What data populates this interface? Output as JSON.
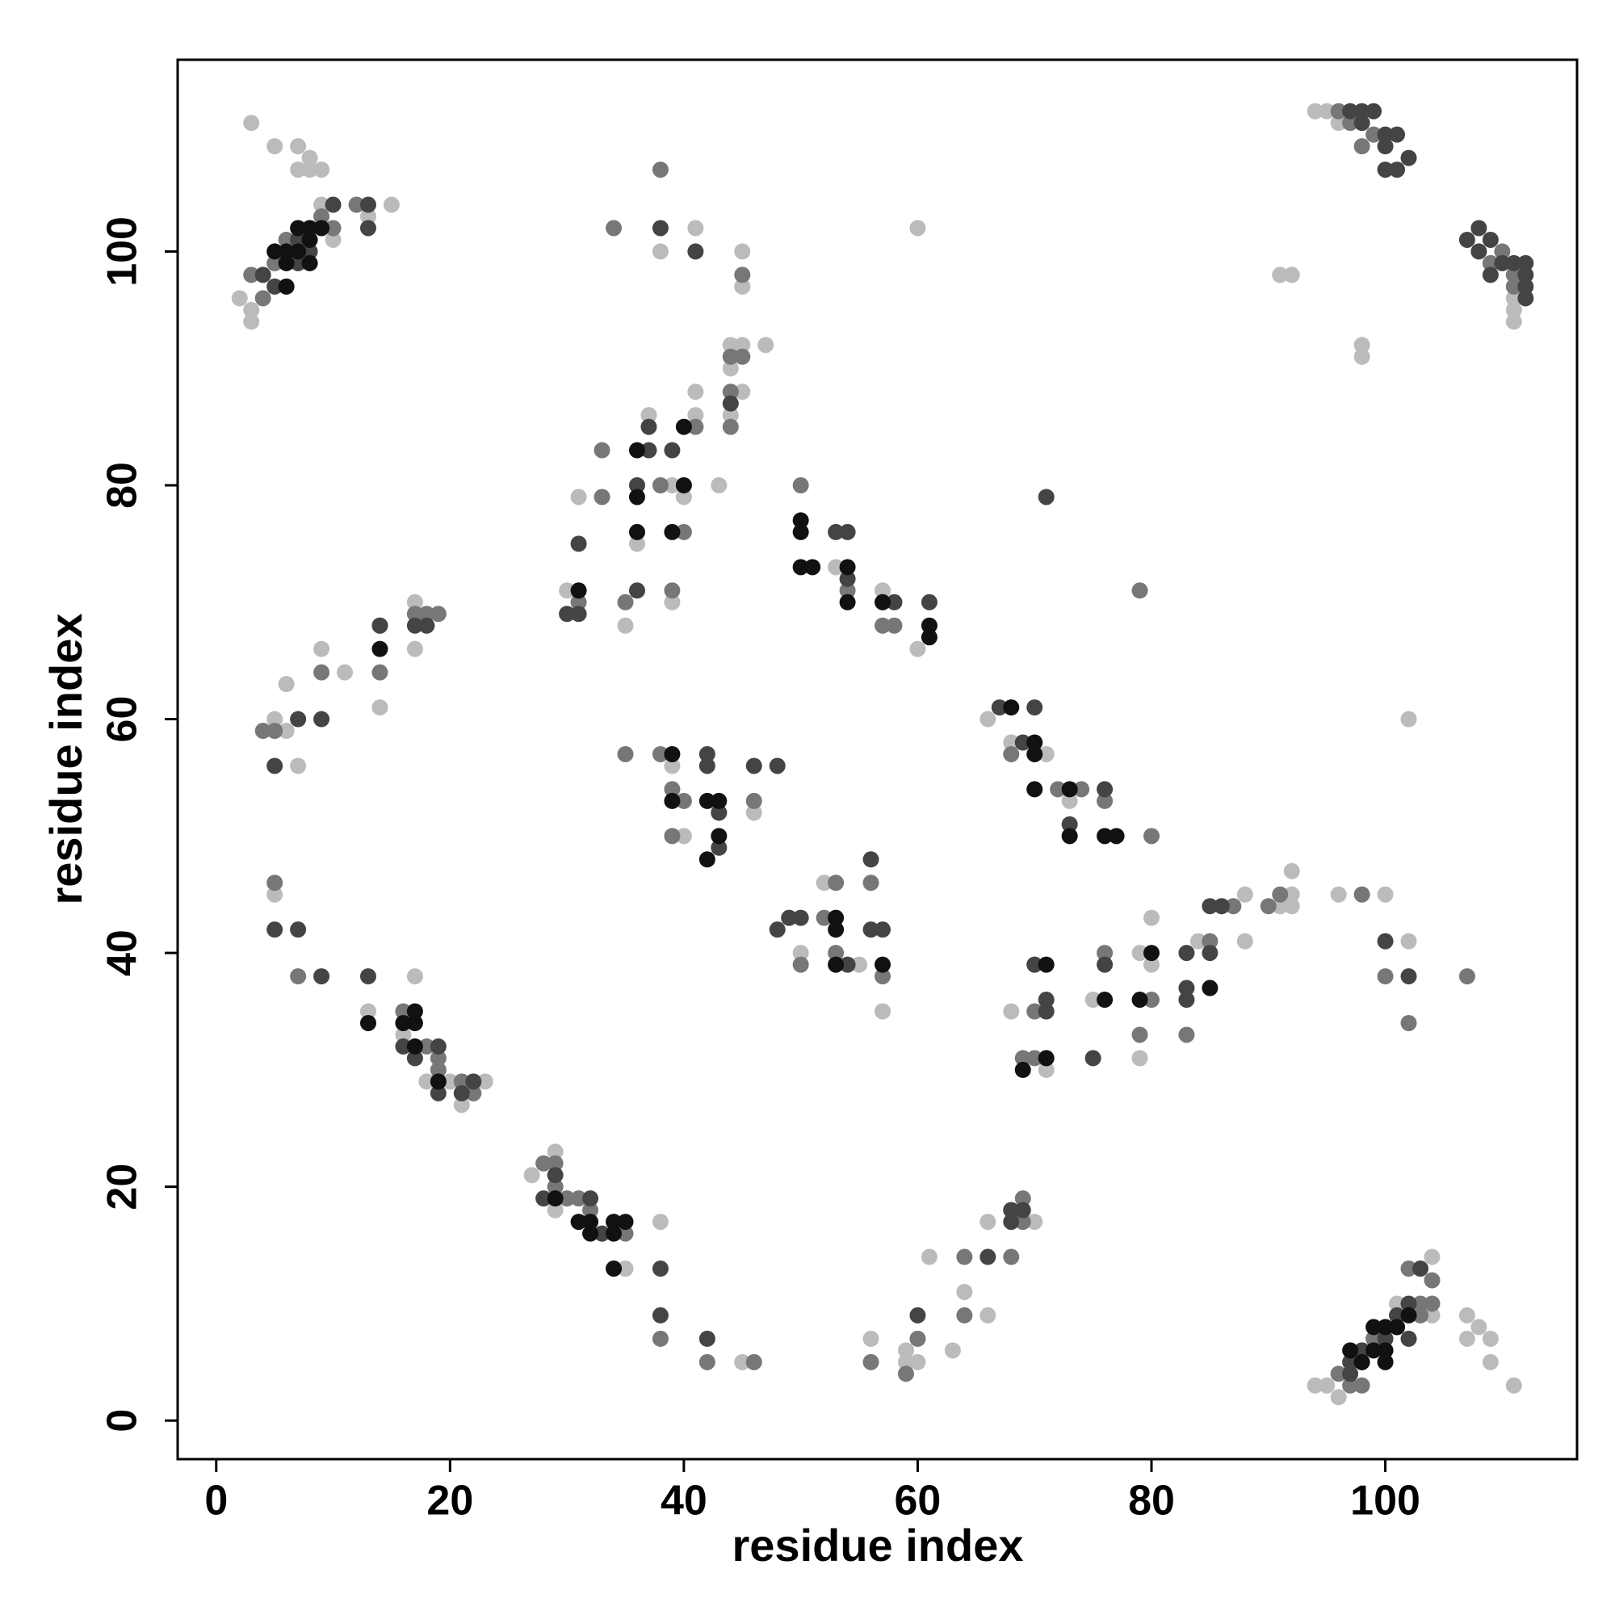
{
  "chart_data": {
    "type": "scatter",
    "x_label": "residue index",
    "y_label": "residue index",
    "xlim": [
      -3.3,
      116.4
    ],
    "ylim": [
      -3.3,
      116.4
    ],
    "xticks": [
      0,
      20,
      40,
      60,
      80,
      100
    ],
    "yticks": [
      0,
      20,
      40,
      60,
      80,
      100
    ],
    "series": [
      {
        "color": "#bbbbbb",
        "x": [
          3,
          5,
          7,
          8,
          7,
          8,
          9,
          2,
          3,
          3,
          9,
          10,
          15,
          13,
          94,
          95,
          96,
          111,
          111,
          111,
          91,
          92,
          98,
          98,
          60,
          102,
          94,
          95,
          96,
          104,
          107,
          108,
          109,
          107,
          109,
          111,
          101,
          104,
          31,
          37,
          36,
          35,
          41,
          41,
          43,
          44,
          45,
          44,
          47,
          45,
          44,
          30,
          39,
          40,
          39,
          53,
          57,
          60,
          39,
          40,
          46,
          50,
          52,
          55,
          57,
          66,
          68,
          71,
          73,
          68,
          70,
          71,
          75,
          80,
          80,
          79,
          84,
          85,
          88,
          86,
          88,
          91,
          92,
          92,
          92,
          79,
          96,
          102,
          100,
          5,
          6,
          6,
          9,
          11,
          14,
          17,
          17,
          7,
          5,
          13,
          16,
          17,
          18,
          20,
          21,
          22,
          23,
          27,
          29,
          29,
          33,
          35,
          38,
          45,
          56,
          59,
          59,
          60,
          61,
          63,
          64,
          66,
          66,
          70,
          38,
          41,
          45,
          45
        ],
        "y": [
          111,
          109,
          109,
          108,
          107,
          107,
          107,
          96,
          95,
          94,
          104,
          101,
          104,
          103,
          112,
          112,
          111,
          96,
          95,
          94,
          98,
          98,
          92,
          91,
          102,
          60,
          3,
          3,
          2,
          14,
          9,
          8,
          7,
          7,
          5,
          3,
          10,
          9,
          79,
          86,
          75,
          68,
          88,
          86,
          80,
          90,
          92,
          92,
          92,
          88,
          86,
          71,
          80,
          79,
          70,
          73,
          71,
          66,
          56,
          50,
          52,
          40,
          46,
          39,
          35,
          60,
          58,
          57,
          53,
          35,
          39,
          30,
          36,
          39,
          43,
          40,
          41,
          37,
          41,
          44,
          45,
          44,
          47,
          44,
          45,
          31,
          45,
          41,
          45,
          60,
          63,
          59,
          66,
          64,
          61,
          70,
          66,
          56,
          45,
          35,
          33,
          38,
          29,
          29,
          27,
          28,
          29,
          21,
          23,
          18,
          16,
          13,
          17,
          5,
          7,
          6,
          5,
          5,
          14,
          6,
          11,
          9,
          17,
          17,
          100,
          102,
          100,
          97
        ]
      },
      {
        "color": "#777777",
        "x": [
          3,
          4,
          5,
          9,
          10,
          12,
          6,
          96,
          97,
          98,
          99,
          109,
          110,
          111,
          111,
          96,
          97,
          98,
          98,
          99,
          102,
          103,
          104,
          104,
          103,
          33,
          33,
          31,
          35,
          38,
          40,
          41,
          44,
          45,
          44,
          44,
          39,
          50,
          54,
          57,
          58,
          79,
          35,
          38,
          39,
          40,
          39,
          43,
          46,
          53,
          53,
          52,
          56,
          57,
          50,
          68,
          76,
          80,
          74,
          72,
          69,
          70,
          70,
          76,
          79,
          80,
          83,
          85,
          87,
          90,
          91,
          98,
          100,
          102,
          107,
          4,
          5,
          9,
          14,
          17,
          18,
          19,
          5,
          7,
          16,
          19,
          19,
          18,
          21,
          22,
          28,
          29,
          29,
          30,
          31,
          32,
          35,
          38,
          42,
          46,
          56,
          59,
          60,
          64,
          64,
          68,
          68,
          69,
          69,
          38,
          34,
          45
        ],
        "y": [
          98,
          96,
          99,
          103,
          102,
          104,
          101,
          112,
          111,
          109,
          110,
          99,
          100,
          98,
          97,
          4,
          3,
          3,
          5,
          7,
          13,
          10,
          12,
          10,
          9,
          83,
          79,
          70,
          70,
          80,
          76,
          85,
          91,
          91,
          88,
          85,
          71,
          80,
          71,
          68,
          68,
          71,
          57,
          57,
          54,
          53,
          50,
          52,
          53,
          46,
          40,
          43,
          46,
          38,
          39,
          57,
          53,
          50,
          54,
          54,
          31,
          31,
          35,
          40,
          33,
          36,
          33,
          41,
          44,
          44,
          45,
          45,
          38,
          34,
          38,
          59,
          59,
          64,
          64,
          69,
          69,
          69,
          46,
          38,
          35,
          31,
          30,
          32,
          29,
          28,
          22,
          22,
          20,
          19,
          19,
          18,
          16,
          7,
          5,
          5,
          5,
          4,
          7,
          9,
          14,
          14,
          18,
          19,
          17,
          107,
          102,
          98
        ]
      },
      {
        "color": "#444444",
        "x": [
          4,
          5,
          7,
          8,
          10,
          13,
          13,
          7,
          97,
          98,
          99,
          98,
          100,
          100,
          101,
          101,
          102,
          100,
          107,
          108,
          108,
          109,
          110,
          111,
          109,
          112,
          112,
          112,
          112,
          97,
          97,
          98,
          100,
          101,
          102,
          102,
          103,
          101,
          31,
          36,
          37,
          37,
          39,
          30,
          31,
          44,
          36,
          53,
          54,
          54,
          58,
          61,
          71,
          42,
          42,
          43,
          46,
          48,
          43,
          48,
          49,
          50,
          54,
          56,
          57,
          56,
          67,
          73,
          76,
          70,
          69,
          70,
          71,
          71,
          75,
          76,
          83,
          83,
          83,
          85,
          85,
          86,
          100,
          102,
          14,
          5,
          7,
          9,
          14,
          17,
          18,
          5,
          7,
          9,
          13,
          16,
          17,
          19,
          19,
          21,
          22,
          28,
          29,
          32,
          38,
          38,
          33,
          42,
          60,
          66,
          68,
          68,
          69,
          38,
          41
        ],
        "y": [
          98,
          97,
          99,
          100,
          104,
          104,
          102,
          101,
          112,
          112,
          112,
          111,
          110,
          109,
          110,
          107,
          108,
          107,
          101,
          102,
          100,
          101,
          99,
          99,
          98,
          99,
          98,
          97,
          96,
          5,
          4,
          6,
          7,
          9,
          10,
          7,
          13,
          8,
          75,
          71,
          83,
          85,
          83,
          69,
          69,
          87,
          80,
          76,
          76,
          72,
          70,
          70,
          79,
          57,
          56,
          52,
          56,
          56,
          49,
          42,
          43,
          43,
          39,
          48,
          42,
          42,
          61,
          51,
          54,
          61,
          58,
          39,
          36,
          35,
          31,
          39,
          40,
          37,
          36,
          44,
          40,
          44,
          41,
          38,
          68,
          56,
          60,
          60,
          68,
          68,
          68,
          42,
          42,
          38,
          38,
          32,
          31,
          32,
          28,
          28,
          29,
          19,
          21,
          19,
          13,
          9,
          16,
          7,
          9,
          14,
          17,
          18,
          18,
          102,
          100
        ]
      },
      {
        "color": "#111111",
        "x": [
          5,
          6,
          6,
          6,
          7,
          8,
          8,
          8,
          9,
          7,
          97,
          98,
          99,
          99,
          100,
          100,
          100,
          101,
          102,
          31,
          36,
          36,
          36,
          39,
          40,
          40,
          50,
          50,
          50,
          51,
          54,
          54,
          57,
          61,
          61,
          39,
          39,
          42,
          43,
          43,
          42,
          53,
          53,
          53,
          57,
          68,
          70,
          70,
          70,
          73,
          73,
          76,
          77,
          69,
          71,
          76,
          71,
          79,
          80,
          85,
          14,
          13,
          16,
          17,
          17,
          17,
          19,
          29,
          31,
          32,
          32,
          34,
          34,
          35,
          34
        ],
        "y": [
          100,
          100,
          99,
          97,
          102,
          102,
          101,
          99,
          102,
          100,
          6,
          5,
          8,
          6,
          8,
          6,
          5,
          8,
          9,
          71,
          83,
          79,
          76,
          76,
          85,
          80,
          77,
          76,
          73,
          73,
          73,
          70,
          70,
          68,
          67,
          57,
          53,
          53,
          53,
          50,
          48,
          43,
          42,
          39,
          39,
          61,
          58,
          57,
          54,
          54,
          50,
          50,
          50,
          30,
          31,
          36,
          39,
          36,
          40,
          37,
          66,
          34,
          34,
          35,
          34,
          32,
          29,
          19,
          17,
          17,
          16,
          17,
          16,
          17,
          13
        ]
      }
    ]
  }
}
